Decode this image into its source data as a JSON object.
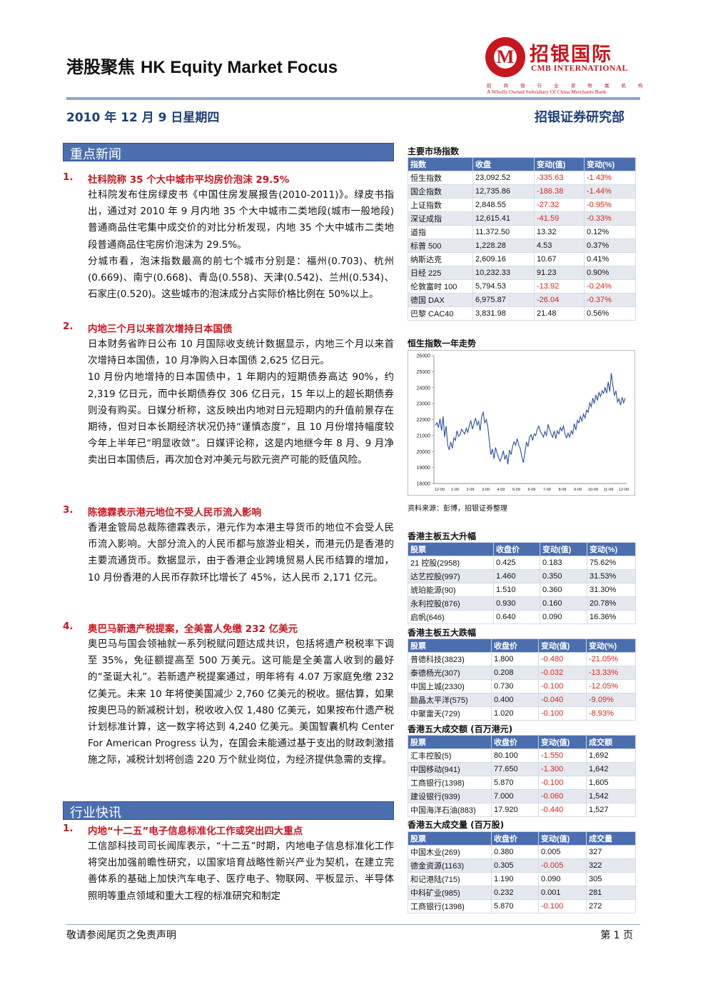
{
  "header": {
    "title_zh": "港股聚焦",
    "title_en": "HK Equity Market Focus",
    "date": "2010 年 12 月 9 日星期四",
    "dept": "招银证券研究部",
    "logo_name": "招银国际",
    "logo_en": "CMB INTERNATIONAL",
    "logo_sub_zh": "招 商 银 行 全 资 附 属 机 构",
    "logo_sub_en": "A Wholly Owned Subsidiary Of China Merchants Bank"
  },
  "sections": {
    "key_news": "重点新闻",
    "industry": "行业快讯"
  },
  "news": [
    {
      "num": "1.",
      "title": "社科院称 35 个大中城市平均房价泡沫 29.5%",
      "paras": [
        "社科院发布住房绿皮书《中国住房发展报告(2010-2011)》。绿皮书指出，通过对 2010 年 9 月内地 35 个大中城市二类地段(城市一般地段)普通商品住宅集中成交价的对比分析发现，内地 35 个大中城市二类地段普通商品住宅房价泡沫为 29.5%。",
        "分城市看，泡沫指数最高的前七个城市分别是：福州(0.703)、杭州(0.669)、南宁(0.668)、青岛(0.558)、天津(0.542)、兰州(0.534)、石家庄(0.520)。这些城市的泡沫成分占实际价格比例在 50%以上。"
      ]
    },
    {
      "num": "2.",
      "title": "内地三个月以来首次增持日本国债",
      "paras": [
        "日本财务省昨日公布 10 月国际收支统计数据显示，内地三个月以来首次增持日本国债，10 月净购入日本国债 2,625 亿日元。",
        "10 月份内地增持的日本国债中，1 年期内的短期债券高达 90%，约 2,319 亿日元，而中长期债券仅 306 亿日元，15 年以上的超长期债券则没有购买。日媒分析称，这反映出内地对日元短期内的升值前景存在期待，但对日本长期经济状况仍持“谨慎态度”，且 10 月份增持幅度较今年上半年已“明显收敛”。日媒评论称，这是内地继今年 8 月、9 月净卖出日本国债后，再次加仓对冲美元与欧元资产可能的贬值风险。"
      ]
    },
    {
      "num": "3.",
      "title": "陈德霖表示港元地位不受人民币流入影响",
      "paras": [
        "香港金管局总裁陈德霖表示，港元作为本港主导货币的地位不会受人民币流入影响。大部分流入的人民币都与旅游业相关，而港元仍是香港的主要流通货币。数据显示，由于香港企业跨境贸易人民币结算的增加，10 月份香港的人民币存款环比增长了 45%，达人民币 2,171 亿元。"
      ]
    },
    {
      "num": "4.",
      "title": "奥巴马新遗产税提案，全美富人免缴 232 亿美元",
      "paras": [
        "奥巴马与国会领袖就一系列税赋问题达成共识，包括将遗产税税率下调至 35%，免征额提高至 500 万美元。这可能是全美富人收到的最好的“圣诞大礼”。若新遗产税提案通过，明年将有 4.07 万家庭免缴 232 亿美元。未来 10 年将使美国减少 2,760 亿美元的税收。据估算，如果按奥巴马的新减税计划，税收收入仅 1,480 亿美元，如果按布什遗产税计划标准计算，这一数字将达到 4,240 亿美元。美国智囊机构 Center For American Progress 认为，在国会未能通过基于支出的财政刺激措施之际，减税计划将创造 220 万个就业岗位，为经济提供急需的支撑。"
      ]
    }
  ],
  "industry_news": [
    {
      "num": "1.",
      "title": "内地“十二五”电子信息标准化工作或突出四大重点",
      "paras": [
        "工信部科技司司长闻库表示，“十二五”时期，内地电子信息标准化工作将突出加强前瞻性研究，以国家培育战略性新兴产业为契机，在建立完善体系的基础上加快汽车电子、医疗电子、物联网、平板显示、半导体照明等重点领域和重大工程的标准研究和制定"
      ]
    }
  ],
  "market_indices": {
    "title": "主要市场指数",
    "headers": [
      "指数",
      "收盘",
      "变动(值)",
      "变动(%)"
    ],
    "rows": [
      [
        "恒生指数",
        "23,092.52",
        "-335.63",
        "-1.43%"
      ],
      [
        "国企指数",
        "12,735.86",
        "-186.38",
        "-1.44%"
      ],
      [
        "上证指数",
        "2,848.55",
        "-27.32",
        "-0.95%"
      ],
      [
        "深证成指",
        "12,615.41",
        "-41.59",
        "-0.33%"
      ],
      [
        "道指",
        "11,372.50",
        "13.32",
        "0.12%"
      ],
      [
        "标普 500",
        "1,228.28",
        "4.53",
        "0.37%"
      ],
      [
        "纳斯达克",
        "2,609.16",
        "10.67",
        "0.41%"
      ],
      [
        "日经 225",
        "10,232.33",
        "91.23",
        "0.90%"
      ],
      [
        "伦敦富时 100",
        "5,794.53",
        "-13.92",
        "-0.24%"
      ],
      [
        "德国 DAX",
        "6,975.87",
        "-26.04",
        "-0.37%"
      ],
      [
        "巴黎 CAC40",
        "3,831.98",
        "21.48",
        "0.56%"
      ]
    ]
  },
  "chart_title": "恒生指数一年走势",
  "chart_source": "资料来源：彭博，招银证券整理",
  "chart_data": {
    "type": "line",
    "title": "恒生指数一年走势",
    "ylim": [
      18000,
      26000
    ],
    "yticks": [
      "26000",
      "25000",
      "24000",
      "23000",
      "22000",
      "21000",
      "20000",
      "19000",
      "18000"
    ],
    "xticks": [
      "12-09",
      "1-09",
      "2-09",
      "3-09",
      "4-09",
      "5-09",
      "6-09",
      "7-09",
      "8-09",
      "9-09",
      "10-09",
      "11-09",
      "12-09"
    ],
    "color": "#2b4fa0",
    "series": [
      {
        "values": [
          21650,
          21800,
          21500,
          22050,
          21300,
          22200,
          20900,
          21600,
          20400,
          20100,
          20600,
          20200,
          20850,
          20700,
          21300,
          20950,
          21050,
          21400,
          21250,
          21100,
          21450,
          21200,
          21600,
          21950,
          21400,
          21750,
          22100,
          21650,
          21900,
          21300,
          22200,
          22450,
          21800,
          22000,
          21550,
          20600,
          19800,
          20150,
          19550,
          20250,
          19900,
          19600,
          19400,
          19700,
          20050,
          19500,
          19800,
          19200,
          20100,
          19800,
          20300,
          20600,
          20400,
          20800,
          20400,
          20200,
          19700,
          19300,
          19900,
          20600,
          20300,
          20900,
          21050,
          20700,
          21100,
          21000,
          21400,
          21600,
          21250,
          21100,
          20900,
          21250,
          21000,
          21700,
          21400,
          21100,
          20900,
          21300,
          20800,
          21300,
          21100,
          21500,
          21300,
          21600,
          21100,
          20850,
          21150,
          20900,
          21300,
          21100,
          21750,
          21350,
          21950,
          21800,
          22200,
          21900,
          22350,
          22100,
          22600,
          22450,
          23050,
          22800,
          23350,
          23000,
          23550,
          23200,
          23700,
          23450,
          23800,
          23650,
          24000,
          23650,
          24350,
          23750,
          24900,
          24150,
          23500,
          23800,
          23100,
          23300,
          22900,
          23400,
          23050,
          23350
        ]
      }
    ]
  },
  "gainers": {
    "title": "香港主板五大升幅",
    "headers": [
      "股票",
      "收盘价",
      "变动(值)",
      "变动(%)"
    ],
    "rows": [
      [
        "21 控股(2958)",
        "0.425",
        "0.183",
        "75.62%"
      ],
      [
        "达艺控股(997)",
        "1.460",
        "0.350",
        "31.53%"
      ],
      [
        "琥珀能源(90)",
        "1.510",
        "0.360",
        "31.30%"
      ],
      [
        "永利控股(876)",
        "0.930",
        "0.160",
        "20.78%"
      ],
      [
        "启帆(646)",
        "0.640",
        "0.090",
        "16.36%"
      ]
    ]
  },
  "losers": {
    "title": "香港主板五大跌幅",
    "headers": [
      "股票",
      "收盘价",
      "变动(值)",
      "变动(%)"
    ],
    "rows": [
      [
        "普德科技(3823)",
        "1.800",
        "-0.480",
        "-21.05%"
      ],
      [
        "泰德杨光(307)",
        "0.208",
        "-0.032",
        "-13.33%"
      ],
      [
        "中国上城(2330)",
        "0.730",
        "-0.100",
        "-12.05%"
      ],
      [
        "励晶太平洋(575)",
        "0.400",
        "-0.040",
        "-9.09%"
      ],
      [
        "中聚雷天(729)",
        "1.020",
        "-0.100",
        "-8.93%"
      ]
    ]
  },
  "turnover": {
    "title": "香港五大成交额 (百万港元)",
    "headers": [
      "股票",
      "收盘价",
      "变动(值)",
      "成交额"
    ],
    "rows": [
      [
        "汇丰控股(5)",
        "80.100",
        "-1.550",
        "1,692"
      ],
      [
        "中国移动(941)",
        "77.650",
        "-1.300",
        "1,642"
      ],
      [
        "工商银行(1398)",
        "5.870",
        "-0.100",
        "1,605"
      ],
      [
        "建设银行(939)",
        "7.000",
        "-0.060",
        "1,542"
      ],
      [
        "中国海洋石油(883)",
        "17.920",
        "-0.440",
        "1,527"
      ]
    ]
  },
  "volume": {
    "title": "香港五大成交量 (百万股)",
    "headers": [
      "股票",
      "收盘价",
      "变动(值)",
      "成交量"
    ],
    "rows": [
      [
        "中国木业(269)",
        "0.380",
        "0.005",
        "327"
      ],
      [
        "德金资源(1163)",
        "0.305",
        "-0.005",
        "322"
      ],
      [
        "和记港陆(715)",
        "1.190",
        "0.090",
        "305"
      ],
      [
        "中科矿业(985)",
        "0.232",
        "0.001",
        "281"
      ],
      [
        "工商银行(1398)",
        "5.870",
        "-0.100",
        "272"
      ]
    ]
  },
  "footer": {
    "disclaimer": "敬请参阅尾页之免责声明",
    "page": "第 1 页"
  }
}
